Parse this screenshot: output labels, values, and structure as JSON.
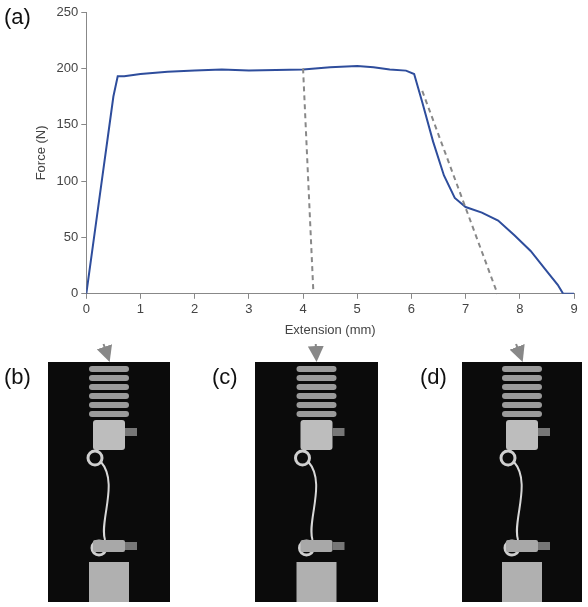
{
  "chart_data": {
    "type": "line",
    "panel": "(a)",
    "x_label": "Extension (mm)",
    "y_label": "Force (N)",
    "color": "#2e4d9c",
    "x": [
      0,
      0.1,
      0.2,
      0.3,
      0.4,
      0.5,
      0.58,
      0.7,
      1,
      1.5,
      2,
      2.5,
      3,
      3.5,
      4,
      4.5,
      5,
      5.3,
      5.6,
      5.9,
      6.05,
      6.2,
      6.4,
      6.6,
      6.8,
      7,
      7.3,
      7.6,
      7.9,
      8.2,
      8.5,
      8.7,
      8.8,
      9
    ],
    "values": [
      0,
      35,
      70,
      105,
      140,
      175,
      193,
      193,
      195,
      197,
      198,
      199,
      198,
      198.5,
      199,
      201,
      202,
      201,
      199,
      198,
      195,
      170,
      135,
      105,
      85,
      77,
      72,
      65,
      52,
      38,
      20,
      8,
      0,
      0
    ],
    "xlim": [
      0,
      9
    ],
    "xticks": [
      0,
      1,
      2,
      3,
      4,
      5,
      6,
      7,
      8,
      9
    ],
    "ylim": [
      0,
      250
    ],
    "yticks": [
      0,
      50,
      100,
      150,
      200,
      250
    ],
    "grid": false,
    "annotations": [
      {
        "label": "(b)",
        "x": 0,
        "y": 0
      },
      {
        "label": "(c)",
        "x": 4,
        "y": 200
      },
      {
        "label": "(d)",
        "x": 6.2,
        "y": 180
      }
    ]
  }
}
